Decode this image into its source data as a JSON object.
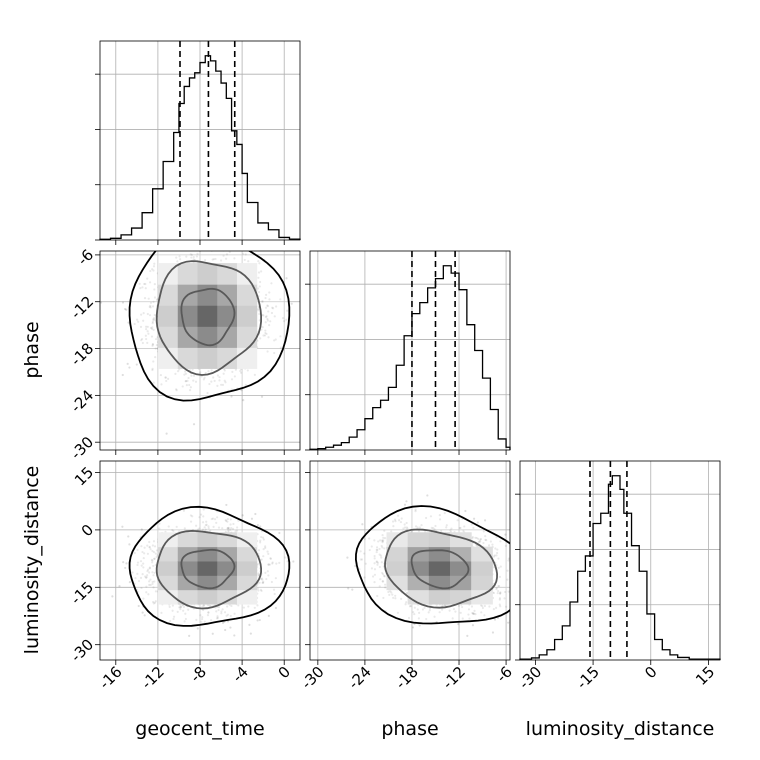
{
  "chart_data": {
    "type": "corner",
    "parameters": [
      "geocent_time",
      "phase",
      "luminosity_distance"
    ],
    "grid": true,
    "axis_labels": {
      "x": [
        "geocent_time",
        "phase",
        "luminosity_distance"
      ],
      "y": [
        "phase",
        "luminosity_distance"
      ]
    },
    "ranges": {
      "geocent_time": [
        -17.5,
        1.5
      ],
      "phase": [
        -31,
        -5.5
      ],
      "luminosity_distance": [
        -34,
        18
      ]
    },
    "ticks": {
      "geocent_time": [
        "-16",
        "-12",
        "-8",
        "-4",
        "0"
      ],
      "phase": [
        "-30",
        "-24",
        "-18",
        "-12",
        "-6"
      ],
      "luminosity_distance": [
        "-30",
        "-15",
        "0",
        "15"
      ]
    },
    "tick_values": {
      "geocent_time": [
        -16,
        -12,
        -8,
        -4,
        0
      ],
      "phase": [
        -30,
        -24,
        -18,
        -12,
        -6
      ],
      "luminosity_distance": [
        -30,
        -15,
        0,
        15
      ]
    },
    "marginals": [
      {
        "parameter": "geocent_time",
        "quantiles": [
          -9.9,
          -7.2,
          -4.7
        ],
        "bin_edges": [
          -17.5,
          -16.5,
          -15.5,
          -14.5,
          -13.5,
          -12.5,
          -11.5,
          -10.5,
          -10,
          -9.5,
          -9,
          -8.5,
          -8,
          -7.5,
          -7,
          -6.5,
          -6,
          -5.5,
          -5,
          -4.5,
          -4,
          -3.5,
          -2.5,
          -1.5,
          -0.5,
          0.5,
          1.5
        ],
        "counts": [
          0.4,
          1,
          3,
          7,
          16,
          30,
          46,
          63,
          80,
          90,
          95,
          98,
          104,
          108,
          105,
          99,
          92,
          83,
          64,
          56,
          39,
          22,
          10,
          6,
          1.5,
          0.5
        ]
      },
      {
        "parameter": "phase",
        "quantiles": [
          -18,
          -15,
          -12.5
        ],
        "bin_edges": [
          -31,
          -30,
          -29,
          -28,
          -27,
          -26,
          -25,
          -24,
          -23,
          -22,
          -21,
          -20,
          -19,
          -18,
          -17,
          -16,
          -15,
          -14,
          -13,
          -12,
          -11,
          -10,
          -9,
          -8,
          -7,
          -6,
          -5.5
        ],
        "counts": [
          0.4,
          0.7,
          1.5,
          2.6,
          4,
          7,
          11,
          17,
          23,
          27,
          34,
          46,
          62,
          74,
          80,
          88,
          93,
          100,
          96,
          87,
          68,
          54,
          39,
          22,
          6,
          1.5
        ]
      },
      {
        "parameter": "luminosity_distance",
        "quantiles": [
          -15.8,
          -10.5,
          -6.2
        ],
        "bin_edges": [
          -34,
          -31,
          -29,
          -27,
          -25,
          -23,
          -21,
          -19,
          -17,
          -15,
          -13,
          -11,
          -10,
          -8,
          -7,
          -5,
          -3,
          -1,
          1,
          3,
          5,
          7,
          10,
          18
        ],
        "counts": [
          0.5,
          1.2,
          3,
          6,
          12,
          20,
          34,
          52,
          61,
          80,
          86,
          103,
          108,
          100,
          86,
          67,
          52,
          27,
          12,
          6,
          3,
          1.5,
          0.5
        ]
      }
    ],
    "panels_2d": [
      {
        "x": "geocent_time",
        "y": "phase",
        "center": [
          -7.3,
          -13.8
        ],
        "spread": [
          2.5,
          3.6
        ],
        "correlation": 0,
        "contour_levels": [
          0.39,
          0.86,
          0.99
        ]
      },
      {
        "x": "geocent_time",
        "y": "luminosity_distance",
        "center": [
          -7.3,
          -10
        ],
        "spread": [
          2.5,
          5
        ],
        "correlation": 0,
        "contour_levels": [
          0.39,
          0.86,
          0.99
        ]
      },
      {
        "x": "phase",
        "y": "luminosity_distance",
        "center": [
          -14.5,
          -10
        ],
        "spread": [
          3.6,
          5
        ],
        "correlation": -0.15,
        "contour_levels": [
          0.39,
          0.86,
          0.99
        ]
      }
    ]
  }
}
